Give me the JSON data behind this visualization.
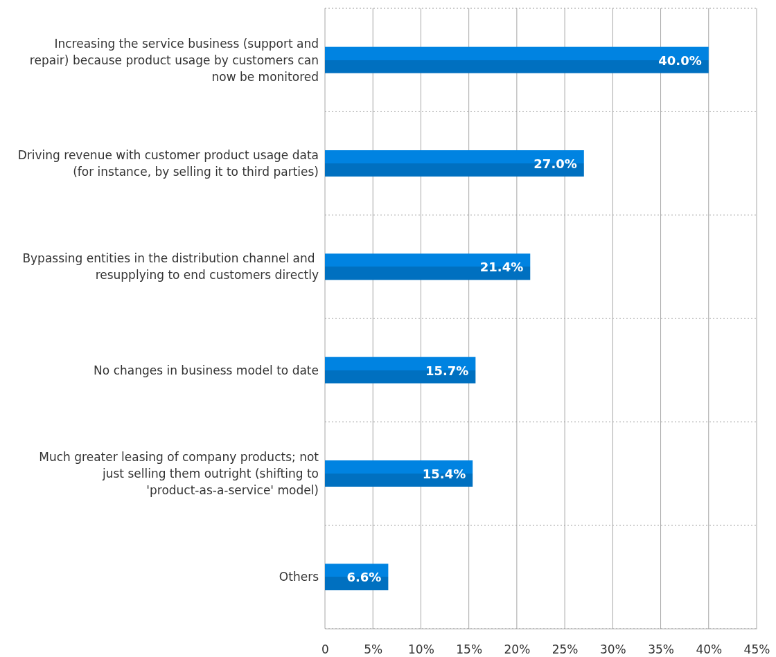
{
  "chart_data": {
    "type": "bar",
    "orientation": "horizontal",
    "categories": [
      "Increasing the service business (support and repair) because product usage by customers can now be monitored",
      "Driving revenue with customer product usage data (for instance, by selling it to third parties)",
      "Bypassing entities in the distribution channel and  resupplying to end customers directly",
      "No changes in business model to date",
      "Much greater leasing of company products; not just selling them outright (shifting to 'product-as-a-service' model)",
      "Others"
    ],
    "values": [
      40.0,
      27.0,
      21.4,
      15.7,
      15.4,
      6.6
    ],
    "value_labels": [
      "40.0%",
      "27.0%",
      "21.4%",
      "15.7%",
      "15.4%",
      "6.6%"
    ],
    "color": "#0070c0",
    "xlim": [
      0,
      45
    ],
    "xticks": [
      0,
      {
        "value": 5,
        "label": "5%"
      },
      {
        "value": 10,
        "label": "10%"
      },
      {
        "value": 15,
        "label": "15%"
      },
      {
        "value": 20,
        "label": "20%"
      },
      {
        "value": 25,
        "label": "25%"
      },
      {
        "value": 30,
        "label": "30%"
      },
      {
        "value": 35,
        "label": "35%"
      },
      {
        "value": 40,
        "label": "40%"
      },
      {
        "value": 45,
        "label": "45%"
      }
    ],
    "grid": "x"
  }
}
